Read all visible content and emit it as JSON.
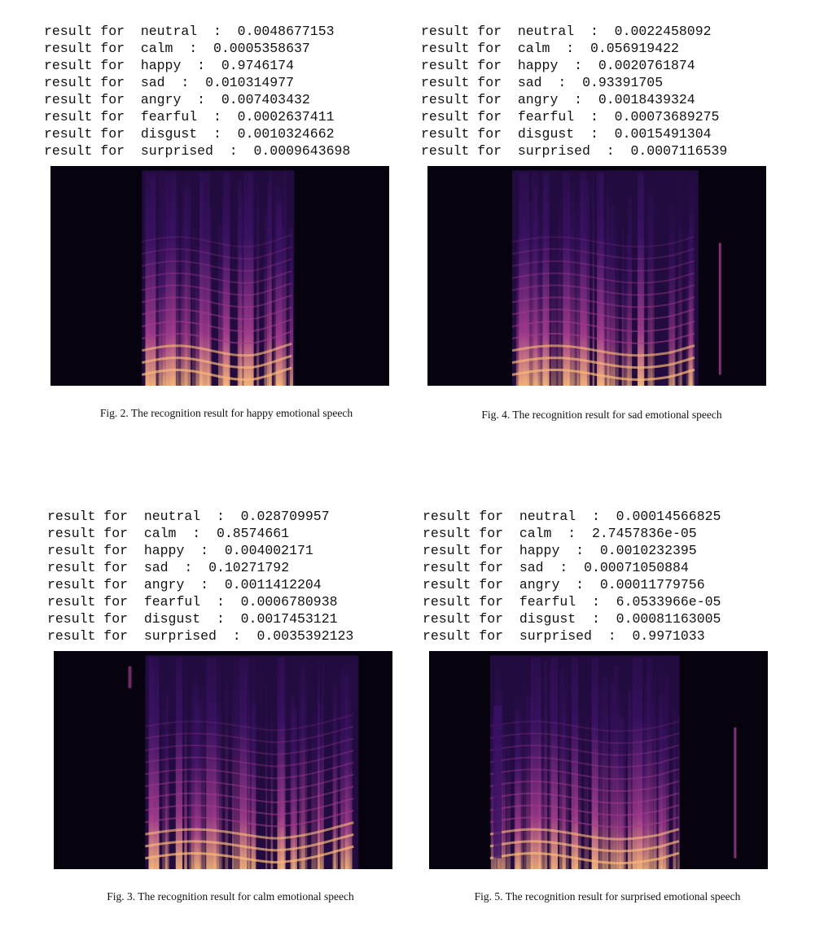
{
  "figures": [
    {
      "id": "fig2",
      "caption": "Fig. 2.  The recognition result for happy emotional speech",
      "results": [
        {
          "prefix": "result for",
          "emotion": "neutral",
          "value": "0.0048677153"
        },
        {
          "prefix": "result for",
          "emotion": "calm",
          "value": "0.0005358637"
        },
        {
          "prefix": "result for",
          "emotion": "happy",
          "value": "0.9746174"
        },
        {
          "prefix": "result for",
          "emotion": "sad",
          "value": "0.010314977"
        },
        {
          "prefix": "result for",
          "emotion": "angry",
          "value": "0.007403432"
        },
        {
          "prefix": "result for",
          "emotion": "fearful",
          "value": "0.0002637411"
        },
        {
          "prefix": "result for",
          "emotion": "disgust",
          "value": "0.0010324662"
        },
        {
          "prefix": "result for",
          "emotion": "surprised",
          "value": "0.0009643698"
        }
      ]
    },
    {
      "id": "fig4",
      "caption": "Fig. 4.  The recognition result for sad emotional speech",
      "results": [
        {
          "prefix": "result for",
          "emotion": "neutral",
          "value": "0.0022458092"
        },
        {
          "prefix": "result for",
          "emotion": "calm",
          "value": "0.056919422"
        },
        {
          "prefix": "result for",
          "emotion": "happy",
          "value": "0.0020761874"
        },
        {
          "prefix": "result for",
          "emotion": "sad",
          "value": "0.93391705"
        },
        {
          "prefix": "result for",
          "emotion": "angry",
          "value": "0.0018439324"
        },
        {
          "prefix": "result for",
          "emotion": "fearful",
          "value": "0.00073689275"
        },
        {
          "prefix": "result for",
          "emotion": "disgust",
          "value": "0.0015491304"
        },
        {
          "prefix": "result for",
          "emotion": "surprised",
          "value": "0.0007116539"
        }
      ]
    },
    {
      "id": "fig3",
      "caption": "Fig. 3.  The recognition result for calm emotional speech",
      "results": [
        {
          "prefix": "result for",
          "emotion": "neutral",
          "value": "0.028709957"
        },
        {
          "prefix": "result for",
          "emotion": "calm",
          "value": "0.8574661"
        },
        {
          "prefix": "result for",
          "emotion": "happy",
          "value": "0.004002171"
        },
        {
          "prefix": "result for",
          "emotion": "sad",
          "value": "0.10271792"
        },
        {
          "prefix": "result for",
          "emotion": "angry",
          "value": "0.0011412204"
        },
        {
          "prefix": "result for",
          "emotion": "fearful",
          "value": "0.0006780938"
        },
        {
          "prefix": "result for",
          "emotion": "disgust",
          "value": "0.0017453121"
        },
        {
          "prefix": "result for",
          "emotion": "surprised",
          "value": "0.0035392123"
        }
      ]
    },
    {
      "id": "fig5",
      "caption": "Fig. 5.  The recognition result for surprised emotional speech",
      "results": [
        {
          "prefix": "result for",
          "emotion": "neutral",
          "value": "0.00014566825"
        },
        {
          "prefix": "result for",
          "emotion": "calm",
          "value": "2.7457836e-05"
        },
        {
          "prefix": "result for",
          "emotion": "happy",
          "value": "0.0010232395"
        },
        {
          "prefix": "result for",
          "emotion": "sad",
          "value": "0.00071050884"
        },
        {
          "prefix": "result for",
          "emotion": "angry",
          "value": "0.00011779756"
        },
        {
          "prefix": "result for",
          "emotion": "fearful",
          "value": "6.0533966e-05"
        },
        {
          "prefix": "result for",
          "emotion": "disgust",
          "value": "0.00081163005"
        },
        {
          "prefix": "result for",
          "emotion": "surprised",
          "value": "0.9971033"
        }
      ]
    }
  ],
  "colors": {
    "spectrogram_background": "#06030f",
    "spectrogram_low": "#3b1266",
    "spectrogram_mid": "#a23b8e",
    "spectrogram_high": "#f6b57a",
    "text": "#111111"
  }
}
